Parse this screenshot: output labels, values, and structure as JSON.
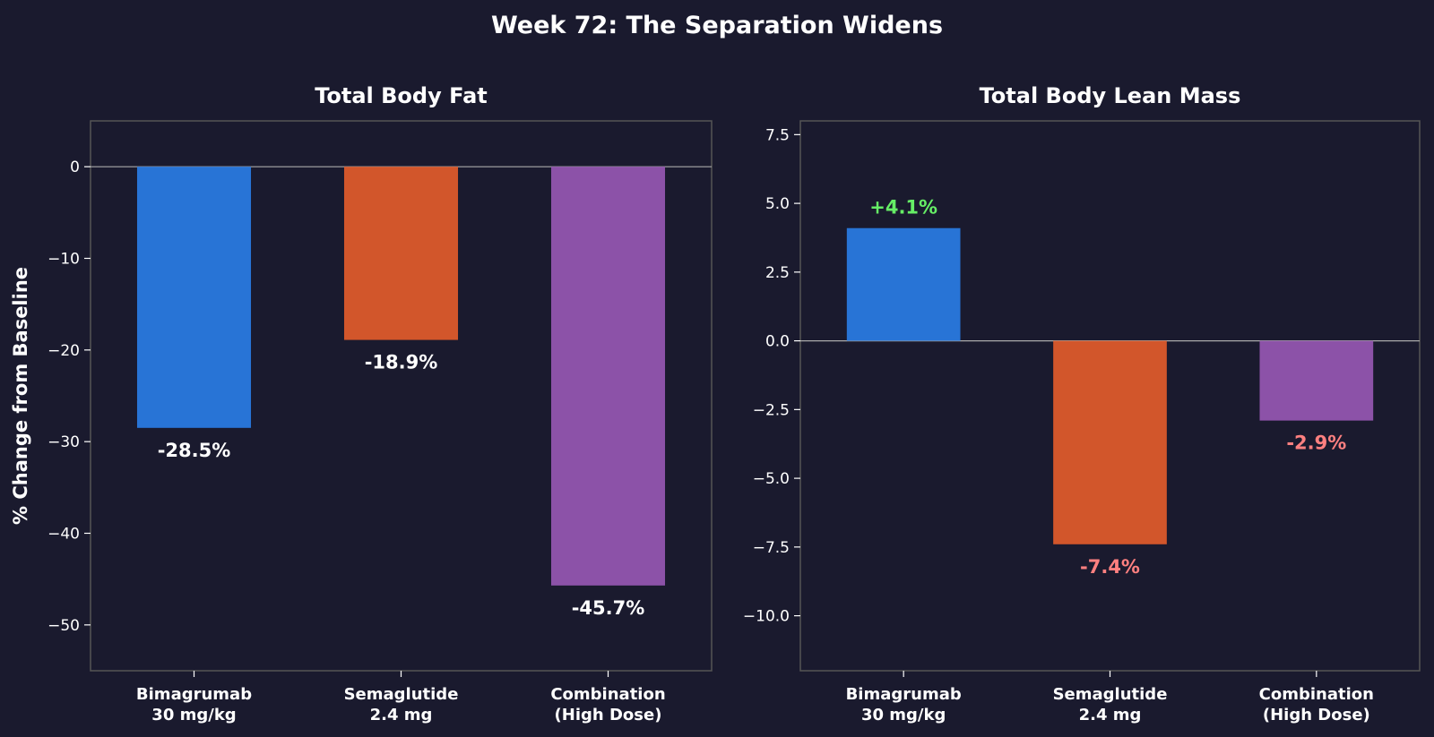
{
  "suptitle": "Week 72: The Separation Widens",
  "colors": {
    "background": "#1a1a2e",
    "text": "#ffffff",
    "frame": "#555555",
    "zero_line": "#aaaaaa",
    "positive_label": "#66ee66",
    "negative_label": "#ff8080"
  },
  "chart_data": [
    {
      "type": "bar",
      "title": "Total Body Fat",
      "ylabel": "% Change from Baseline",
      "xlabel": "",
      "categories": [
        "Bimagrumab\n30 mg/kg",
        "Semaglutide\n2.4 mg",
        "Combination\n(High Dose)"
      ],
      "values": [
        -28.5,
        -18.9,
        -45.7
      ],
      "bar_colors": [
        "#2874d6",
        "#d2562b",
        "#8c52a8"
      ],
      "data_labels": [
        "-28.5%",
        "-18.9%",
        "-45.7%"
      ],
      "label_colors": [
        "#ffffff",
        "#ffffff",
        "#ffffff"
      ],
      "ylim": [
        -55,
        5
      ],
      "yticks": [
        0,
        -10,
        -20,
        -30,
        -40,
        -50
      ],
      "ytick_labels": [
        "0",
        "−10",
        "−20",
        "−30",
        "−40",
        "−50"
      ],
      "grid": false
    },
    {
      "type": "bar",
      "title": "Total Body Lean Mass",
      "ylabel": "",
      "xlabel": "",
      "categories": [
        "Bimagrumab\n30 mg/kg",
        "Semaglutide\n2.4 mg",
        "Combination\n(High Dose)"
      ],
      "values": [
        4.1,
        -7.4,
        -2.9
      ],
      "bar_colors": [
        "#2874d6",
        "#d2562b",
        "#8c52a8"
      ],
      "data_labels": [
        "+4.1%",
        "-7.4%",
        "-2.9%"
      ],
      "label_colors": [
        "#66ee66",
        "#ff8080",
        "#ff8080"
      ],
      "ylim": [
        -12,
        8
      ],
      "yticks": [
        7.5,
        5.0,
        2.5,
        0.0,
        -2.5,
        -5.0,
        -7.5,
        -10.0
      ],
      "ytick_labels": [
        "7.5",
        "5.0",
        "2.5",
        "0.0",
        "−2.5",
        "−5.0",
        "−7.5",
        "−10.0"
      ],
      "grid": false
    }
  ]
}
